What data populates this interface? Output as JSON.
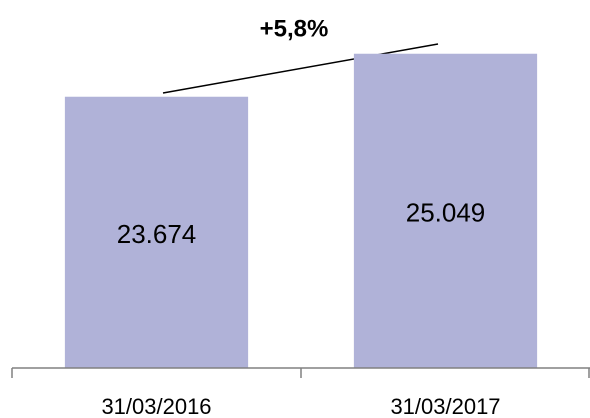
{
  "chart_data": {
    "type": "bar",
    "annotation": "+5,8%",
    "categories": [
      "31/03/2016",
      "31/03/2017"
    ],
    "values": [
      23674,
      25049
    ],
    "value_labels": [
      "23.674",
      "25.049"
    ],
    "color": "#b0b2d8",
    "ylim": [
      15000,
      26000
    ]
  }
}
